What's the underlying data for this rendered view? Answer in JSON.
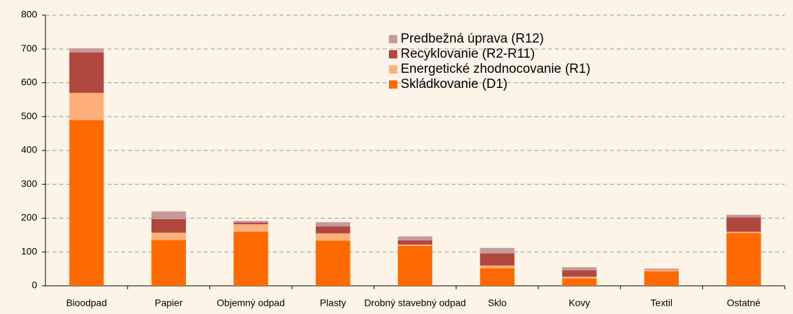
{
  "chart_data": {
    "type": "stacked_bar",
    "categories": [
      "Bioodpad",
      "Papier",
      "Objemný odpad",
      "Plasty",
      "Drobný stavebný odpad",
      "Sklo",
      "Kovy",
      "Textil",
      "Ostatné"
    ],
    "series": [
      {
        "name": "Skládkovanie (D1)",
        "color": "#ff6a00",
        "values": [
          490,
          135,
          160,
          133,
          118,
          52,
          22,
          43,
          156
        ]
      },
      {
        "name": "Energetické zhodnocovanie (R1)",
        "color": "#ffb07a",
        "values": [
          80,
          22,
          22,
          22,
          4,
          8,
          5,
          5,
          4
        ]
      },
      {
        "name": "Recyklovanie (R2-R11)",
        "color": "#b0473f",
        "values": [
          120,
          40,
          5,
          21,
          12,
          36,
          19,
          1,
          42
        ]
      },
      {
        "name": "Predbežná úprava (R12)",
        "color": "#c49a9a",
        "values": [
          12,
          23,
          5,
          12,
          12,
          16,
          9,
          2,
          8
        ]
      }
    ],
    "ylim": [
      0,
      800
    ],
    "yticks": [
      0,
      100,
      200,
      300,
      400,
      500,
      600,
      700,
      800
    ],
    "grid": true
  }
}
